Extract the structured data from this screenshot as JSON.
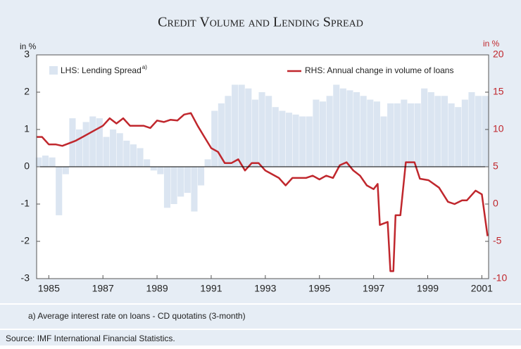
{
  "chart_data": {
    "type": "bar_line",
    "title": "Credit Volume and Lending Spread",
    "ylabel": "in %",
    "y2label": "in %",
    "footnote": "a) Average interest rate on loans - CD quotatins (3-month)",
    "source": "Source: IMF International Financial Statistics.",
    "xlim": [
      1984.55,
      2001.25
    ],
    "xticks": [
      1985,
      1987,
      1989,
      1991,
      1993,
      1995,
      1997,
      1999,
      2001
    ],
    "ylim": [
      -3,
      3
    ],
    "yticks": [
      -3,
      -2,
      -1,
      0,
      1,
      2,
      3
    ],
    "y2lim": [
      -10,
      20
    ],
    "y2ticks": [
      -10,
      -5,
      0,
      5,
      10,
      15,
      20
    ],
    "series": [
      {
        "name": "LHS: Lending Spread",
        "name_note": "a)",
        "type": "bar",
        "color": "#dbe5f1",
        "x": [
          1984.625,
          1984.875,
          1985.125,
          1985.375,
          1985.625,
          1985.875,
          1986.125,
          1986.375,
          1986.625,
          1986.875,
          1987.125,
          1987.375,
          1987.625,
          1987.875,
          1988.125,
          1988.375,
          1988.625,
          1988.875,
          1989.125,
          1989.375,
          1989.625,
          1989.875,
          1990.125,
          1990.375,
          1990.625,
          1990.875,
          1991.125,
          1991.375,
          1991.625,
          1991.875,
          1992.125,
          1992.375,
          1992.625,
          1992.875,
          1993.125,
          1993.375,
          1993.625,
          1993.875,
          1994.125,
          1994.375,
          1994.625,
          1994.875,
          1995.125,
          1995.375,
          1995.625,
          1995.875,
          1996.125,
          1996.375,
          1996.625,
          1996.875,
          1997.125,
          1997.375,
          1997.625,
          1997.875,
          1998.125,
          1998.375,
          1998.625,
          1998.875,
          1999.125,
          1999.375,
          1999.625,
          1999.875,
          2000.125,
          2000.375,
          2000.625,
          2000.875,
          2001.125
        ],
        "values": [
          0.25,
          0.3,
          0.25,
          -1.3,
          -0.2,
          1.3,
          1.0,
          1.2,
          1.35,
          1.3,
          0.8,
          1.0,
          0.9,
          0.7,
          0.6,
          0.5,
          0.2,
          -0.1,
          -0.2,
          -1.1,
          -1.0,
          -0.8,
          -0.7,
          -1.2,
          -0.5,
          0.2,
          1.5,
          1.7,
          1.9,
          2.2,
          2.2,
          2.1,
          1.8,
          2.0,
          1.9,
          1.6,
          1.5,
          1.45,
          1.4,
          1.35,
          1.35,
          1.8,
          1.75,
          1.9,
          2.2,
          2.1,
          2.05,
          2.0,
          1.9,
          1.8,
          1.75,
          1.35,
          1.7,
          1.7,
          1.8,
          1.7,
          1.7,
          2.1,
          2.0,
          1.9,
          1.9,
          1.7,
          1.6,
          1.8,
          2.0,
          1.9,
          1.9
        ]
      },
      {
        "name": "RHS: Annual change in volume of loans",
        "type": "line",
        "axis": "y2",
        "color": "#c0272d",
        "x": [
          1984.55,
          1984.75,
          1985.0,
          1985.25,
          1985.5,
          1986.0,
          1986.25,
          1986.5,
          1987.0,
          1987.25,
          1987.5,
          1987.75,
          1988.0,
          1988.5,
          1988.75,
          1989.0,
          1989.25,
          1989.5,
          1989.75,
          1990.0,
          1990.25,
          1990.5,
          1990.75,
          1991.0,
          1991.25,
          1991.5,
          1991.75,
          1992.0,
          1992.25,
          1992.5,
          1992.75,
          1993.0,
          1993.25,
          1993.5,
          1993.75,
          1994.0,
          1994.25,
          1994.5,
          1994.75,
          1995.0,
          1995.25,
          1995.5,
          1995.75,
          1996.0,
          1996.25,
          1996.5,
          1996.75,
          1997.0,
          1997.15,
          1997.23,
          1997.52,
          1997.62,
          1997.73,
          1997.81,
          1997.99,
          1998.19,
          1998.51,
          1998.71,
          1999.03,
          1999.42,
          1999.75,
          1999.99,
          2000.27,
          2000.45,
          2000.77,
          2001.0,
          2001.21
        ],
        "values": [
          9,
          9,
          8,
          8,
          7.8,
          8.5,
          9,
          9.5,
          10.5,
          11.5,
          10.8,
          11.5,
          10.5,
          10.5,
          10.2,
          11.2,
          11,
          11.3,
          11.2,
          12,
          12.2,
          10.5,
          9,
          7.5,
          7,
          5.5,
          5.5,
          6,
          4.5,
          5.5,
          5.5,
          4.5,
          4,
          3.5,
          2.5,
          3.5,
          3.5,
          3.5,
          3.8,
          3.3,
          3.8,
          3.5,
          5.2,
          5.6,
          4.5,
          3.8,
          2.5,
          2,
          2.7,
          -2.8,
          -2.4,
          -9,
          -9,
          -1.5,
          -1.5,
          5.6,
          5.6,
          3.4,
          3.2,
          2.2,
          0.3,
          0,
          0.5,
          0.5,
          1.8,
          1.3,
          -4.3
        ]
      }
    ]
  }
}
